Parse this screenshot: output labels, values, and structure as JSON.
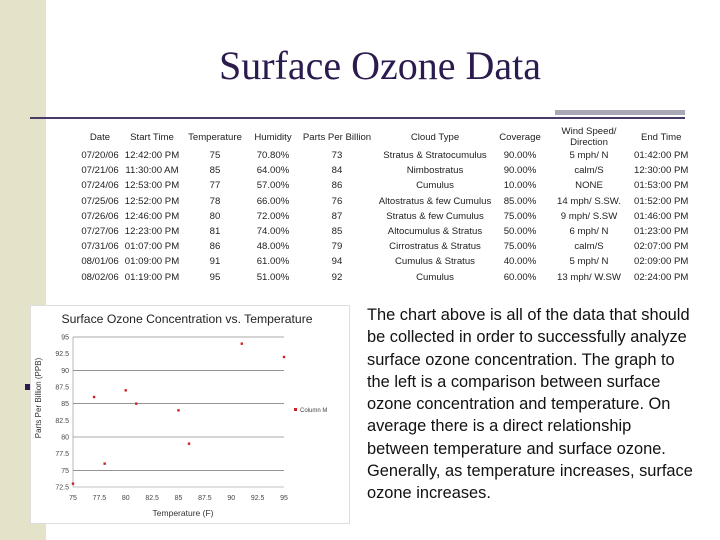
{
  "slide": {
    "title": "Surface Ozone Data",
    "body_text": "The chart above is all of the data that should be collected in order to successfully analyze surface ozone concentration. The graph to the left is a comparison between surface ozone concentration and temperature. On average there is a direct relationship between temperature and surface ozone. Generally, as temperature increases, surface ozone increases."
  },
  "table": {
    "headers": [
      "Date",
      "Start Time",
      "Temperature",
      "Humidity",
      "Parts Per Billion",
      "Cloud Type",
      "Coverage",
      "Wind Speed/ Direction",
      "End Time"
    ],
    "rows": [
      [
        "07/20/06",
        "12:42:00 PM",
        "75",
        "70.80%",
        "73",
        "Stratus & Stratocumulus",
        "90.00%",
        "5 mph/ N",
        "01:42:00 PM"
      ],
      [
        "07/21/06",
        "11:30:00 AM",
        "85",
        "64.00%",
        "84",
        "Nimbostratus",
        "90.00%",
        "calm/S",
        "12:30:00 PM"
      ],
      [
        "07/24/06",
        "12:53:00 PM",
        "77",
        "57.00%",
        "86",
        "Cumulus",
        "10.00%",
        "NONE",
        "01:53:00 PM"
      ],
      [
        "07/25/06",
        "12:52:00 PM",
        "78",
        "66.00%",
        "76",
        "Altostratus & few Cumulus",
        "85.00%",
        "14 mph/ S.SW.",
        "01:52:00 PM"
      ],
      [
        "07/26/06",
        "12:46:00 PM",
        "80",
        "72.00%",
        "87",
        "Stratus & few Cumulus",
        "75.00%",
        "9 mph/ S.SW",
        "01:46:00 PM"
      ],
      [
        "07/27/06",
        "12:23:00 PM",
        "81",
        "74.00%",
        "85",
        "Altocumulus & Stratus",
        "50.00%",
        "6 mph/ N",
        "01:23:00 PM"
      ],
      [
        "07/31/06",
        "01:07:00 PM",
        "86",
        "48.00%",
        "79",
        "Cirrostratus & Stratus",
        "75.00%",
        "calm/S",
        "02:07:00 PM"
      ],
      [
        "08/01/06",
        "01:09:00 PM",
        "91",
        "61.00%",
        "94",
        "Cumulus & Stratus",
        "40.00%",
        "5 mph/ N",
        "02:09:00 PM"
      ],
      [
        "08/02/06",
        "01:19:00 PM",
        "95",
        "51.00%",
        "92",
        "Cumulus",
        "60.00%",
        "13 mph/ W.SW",
        "02:24:00 PM"
      ]
    ]
  },
  "chart_data": {
    "type": "scatter",
    "title": "Surface Ozone Concentration vs. Temperature",
    "xlabel": "Temperature (F)",
    "ylabel": "Parts Per Billion (PPB)",
    "xlim": [
      75,
      95
    ],
    "ylim": [
      72.5,
      95
    ],
    "x_ticks": [
      "75",
      "77.5",
      "80",
      "82.5",
      "85",
      "87.5",
      "90",
      "92.5",
      "95"
    ],
    "y_ticks": [
      "72.5",
      "75",
      "77.5",
      "80",
      "82.5",
      "85",
      "87.5",
      "90",
      "92.5",
      "95"
    ],
    "grid": "horizontal",
    "legend": "right",
    "marker_color": "#cc2222",
    "series": [
      {
        "name": "Column M",
        "points": [
          {
            "x": 75,
            "y": 73
          },
          {
            "x": 85,
            "y": 84
          },
          {
            "x": 77,
            "y": 86
          },
          {
            "x": 78,
            "y": 76
          },
          {
            "x": 80,
            "y": 87
          },
          {
            "x": 81,
            "y": 85
          },
          {
            "x": 86,
            "y": 79
          },
          {
            "x": 91,
            "y": 94
          },
          {
            "x": 95,
            "y": 92
          }
        ]
      }
    ]
  }
}
